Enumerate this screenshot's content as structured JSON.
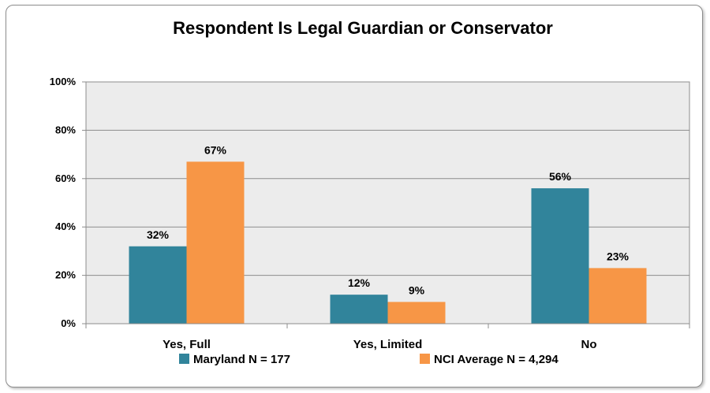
{
  "chart_data": {
    "type": "bar",
    "title": "Respondent Is Legal Guardian or Conservator",
    "categories": [
      "Yes, Full",
      "Yes, Limited",
      "No"
    ],
    "series": [
      {
        "name": "Maryland N = 177",
        "values": [
          32,
          12,
          56
        ],
        "labels": [
          "32%",
          "12%",
          "56%"
        ],
        "color": "#31849b"
      },
      {
        "name": "NCI Average N = 4,294",
        "values": [
          67,
          9,
          23
        ],
        "labels": [
          "67%",
          "9%",
          "23%"
        ],
        "color": "#f79646"
      }
    ],
    "ylim": [
      0,
      100
    ],
    "yticks": [
      0,
      20,
      40,
      60,
      80,
      100
    ],
    "ytick_labels": [
      "0%",
      "20%",
      "40%",
      "60%",
      "80%",
      "100%"
    ],
    "grid": true,
    "plot_background": "#ececec",
    "legend_position": "bottom"
  }
}
